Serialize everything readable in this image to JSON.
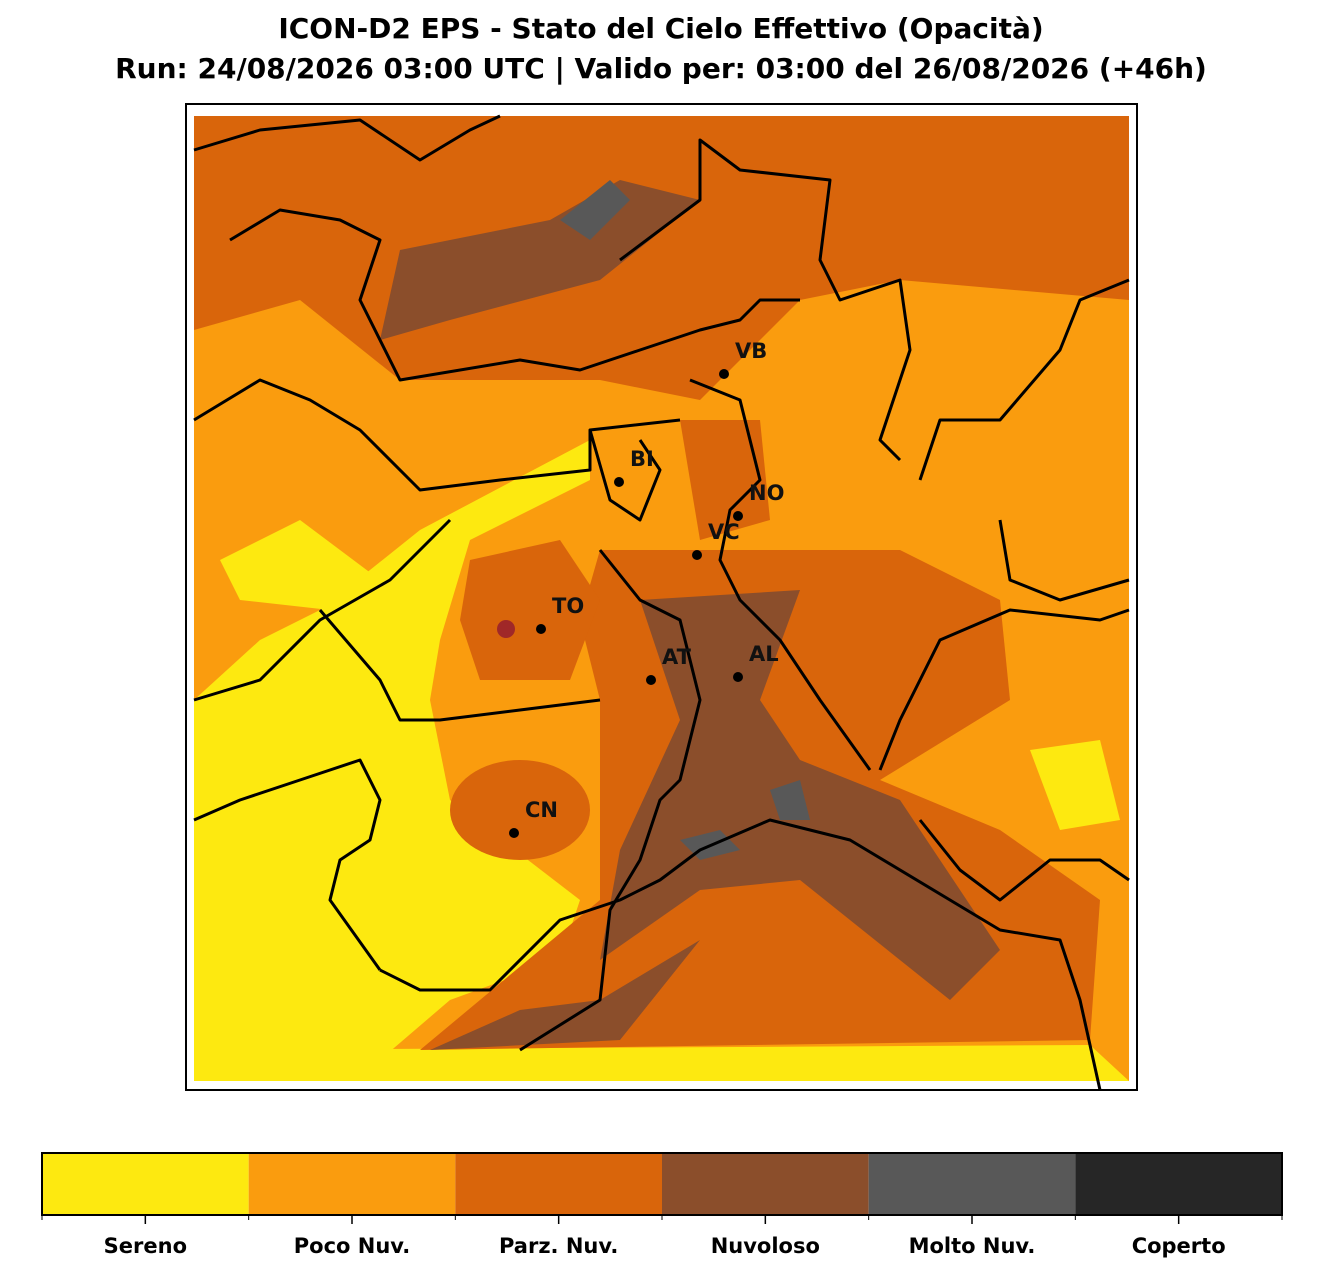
{
  "header": {
    "title": "ICON-D2 EPS - Stato del Cielo Effettivo (Opacità)",
    "subtitle": "Run: 24/08/2026 03:00 UTC | Valido per: 03:00 del 26/08/2026 (+46h)"
  },
  "cities": [
    {
      "label": "VB"
    },
    {
      "label": "BI"
    },
    {
      "label": "NO"
    },
    {
      "label": "VC"
    },
    {
      "label": "TO"
    },
    {
      "label": "AT"
    },
    {
      "label": "AL"
    },
    {
      "label": "CN"
    }
  ],
  "legend": [
    {
      "label": "Sereno",
      "color": "#fde910"
    },
    {
      "label": "Poco Nuv.",
      "color": "#fa9c0e"
    },
    {
      "label": "Parz. Nuv.",
      "color": "#d9650b"
    },
    {
      "label": "Nuvoloso",
      "color": "#8b4e2b"
    },
    {
      "label": "Molto Nuv.",
      "color": "#585858"
    },
    {
      "label": "Coperto",
      "color": "#262626"
    }
  ]
}
